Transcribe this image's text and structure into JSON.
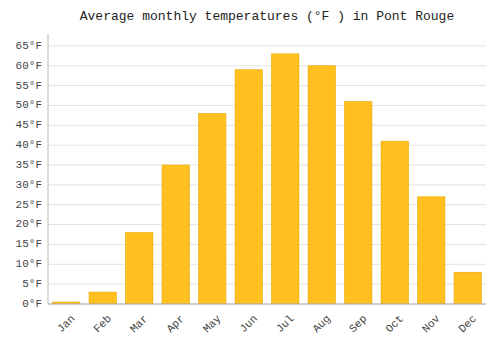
{
  "chart_data": {
    "type": "bar",
    "title": "Average monthly temperatures (°F ) in Pont Rouge",
    "categories": [
      "Jan",
      "Feb",
      "Mar",
      "Apr",
      "May",
      "Jun",
      "Jul",
      "Aug",
      "Sep",
      "Oct",
      "Nov",
      "Dec"
    ],
    "values": [
      0.5,
      3.0,
      18.0,
      35.0,
      48.0,
      59.0,
      63.0,
      60.0,
      51.0,
      41.0,
      27.0,
      8.0
    ],
    "color": "#FFC020",
    "ylim": [
      0,
      68
    ],
    "yticks": [
      {
        "value": 0,
        "label": "0°F"
      },
      {
        "value": 5,
        "label": "5°F"
      },
      {
        "value": 10,
        "label": "10°F"
      },
      {
        "value": 15,
        "label": "15°F"
      },
      {
        "value": 20,
        "label": "20°F"
      },
      {
        "value": 25,
        "label": "25°F"
      },
      {
        "value": 30,
        "label": "30°F"
      },
      {
        "value": 35,
        "label": "35°F"
      },
      {
        "value": 40,
        "label": "40°F"
      },
      {
        "value": 45,
        "label": "45°F"
      },
      {
        "value": 50,
        "label": "50°F"
      },
      {
        "value": 55,
        "label": "55°F"
      },
      {
        "value": 60,
        "label": "60°F"
      },
      {
        "value": 65,
        "label": "65°F"
      }
    ],
    "grid": true
  }
}
